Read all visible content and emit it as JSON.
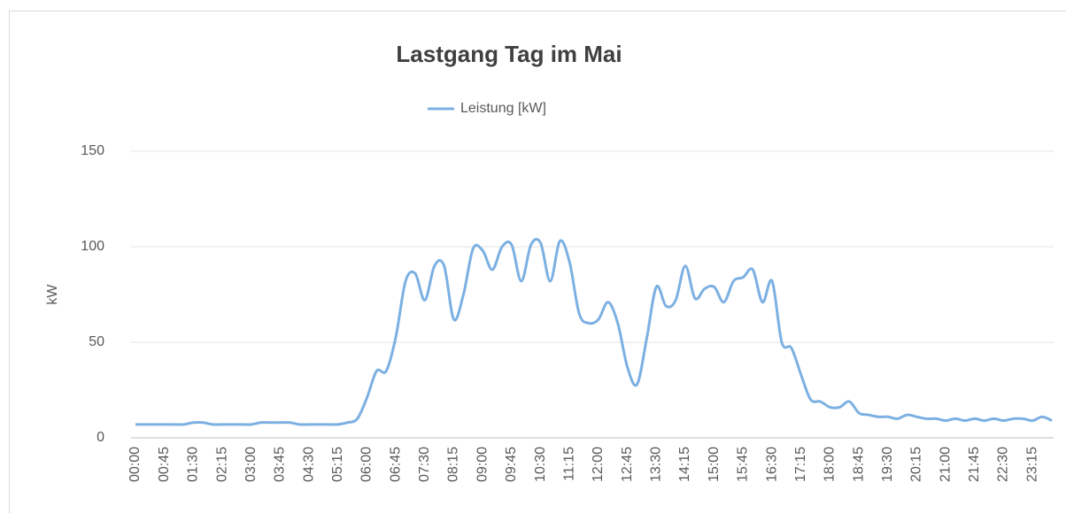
{
  "chart_data": {
    "type": "line",
    "title": "Lastgang Tag im Mai",
    "y_label": "kW",
    "categories": [
      "00:00",
      null,
      null,
      "00:45",
      null,
      null,
      "01:30",
      null,
      null,
      "02:15",
      null,
      null,
      "03:00",
      null,
      null,
      "03:45",
      null,
      null,
      "04:30",
      null,
      null,
      "05:15",
      null,
      null,
      "06:00",
      null,
      null,
      "06:45",
      null,
      null,
      "07:30",
      null,
      null,
      "08:15",
      null,
      null,
      "09:00",
      null,
      null,
      "09:45",
      null,
      null,
      "10:30",
      null,
      null,
      "11:15",
      null,
      null,
      "12:00",
      null,
      null,
      "12:45",
      null,
      null,
      "13:30",
      null,
      null,
      "14:15",
      null,
      null,
      "15:00",
      null,
      null,
      "15:45",
      null,
      null,
      "16:30",
      null,
      null,
      "17:15",
      null,
      null,
      "18:00",
      null,
      null,
      "18:45",
      null,
      null,
      "19:30",
      null,
      null,
      "20:15",
      null,
      null,
      "21:00",
      null,
      null,
      "21:45",
      null,
      null,
      "22:30",
      null,
      null,
      "23:15",
      null,
      null
    ],
    "series": [
      {
        "name": "Leistung [kW]",
        "color": "#7cb0e2",
        "values": [
          7,
          7,
          7,
          7,
          7,
          7,
          8,
          8,
          7,
          7,
          7,
          7,
          7,
          8,
          8,
          8,
          8,
          7,
          7,
          7,
          7,
          7,
          8,
          10,
          21,
          35,
          35,
          53,
          82,
          86,
          72,
          90,
          90,
          62,
          75,
          99,
          98,
          88,
          100,
          101,
          82,
          101,
          102,
          82,
          103,
          92,
          65,
          60,
          62,
          71,
          60,
          37,
          28,
          52,
          79,
          69,
          72,
          90,
          73,
          78,
          79,
          71,
          82,
          84,
          88,
          71,
          82,
          50,
          47,
          33,
          20,
          19,
          16,
          16,
          19,
          13,
          12,
          11,
          11,
          10,
          12,
          11,
          10,
          10,
          9,
          10,
          9,
          10,
          9,
          10,
          9,
          10,
          10,
          9,
          11,
          9
        ]
      }
    ],
    "ylim": [
      0,
      150
    ],
    "yticks": [
      0,
      50,
      100,
      150
    ],
    "grid": true,
    "legend": "top"
  }
}
